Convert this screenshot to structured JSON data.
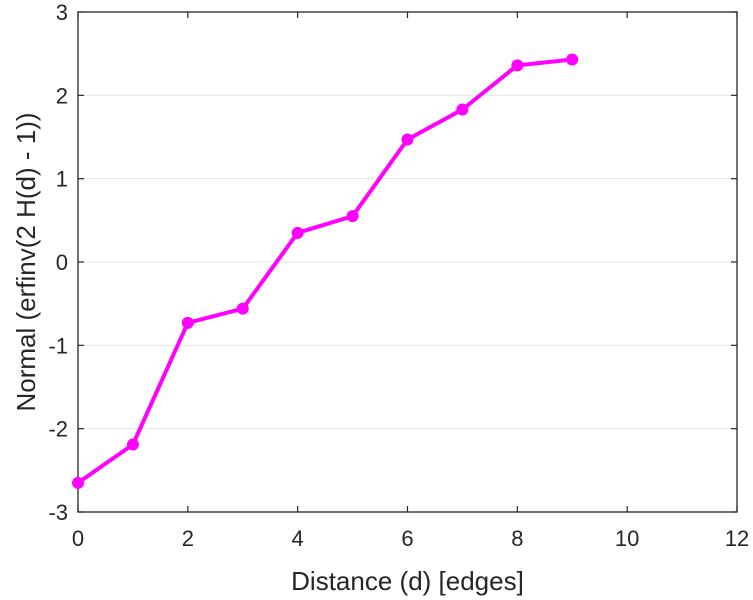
{
  "chart_data": {
    "type": "line",
    "title": "",
    "xlabel": "Distance (d) [edges]",
    "ylabel": "Normal (erfinv(2 H(d) - 1))",
    "xlim": [
      0,
      12
    ],
    "ylim": [
      -3,
      3
    ],
    "xticks": [
      0,
      2,
      4,
      6,
      8,
      10,
      12
    ],
    "yticks": [
      -3,
      -2,
      -1,
      0,
      1,
      2,
      3
    ],
    "grid": "horizontal",
    "series": [
      {
        "color": "#ff00ff",
        "marker": "circle",
        "x": [
          0,
          1,
          2,
          3,
          4,
          5,
          6,
          7,
          8,
          9
        ],
        "y": [
          -2.65,
          -2.19,
          -0.73,
          -0.56,
          0.35,
          0.55,
          1.47,
          1.83,
          2.36,
          2.43
        ]
      }
    ]
  }
}
